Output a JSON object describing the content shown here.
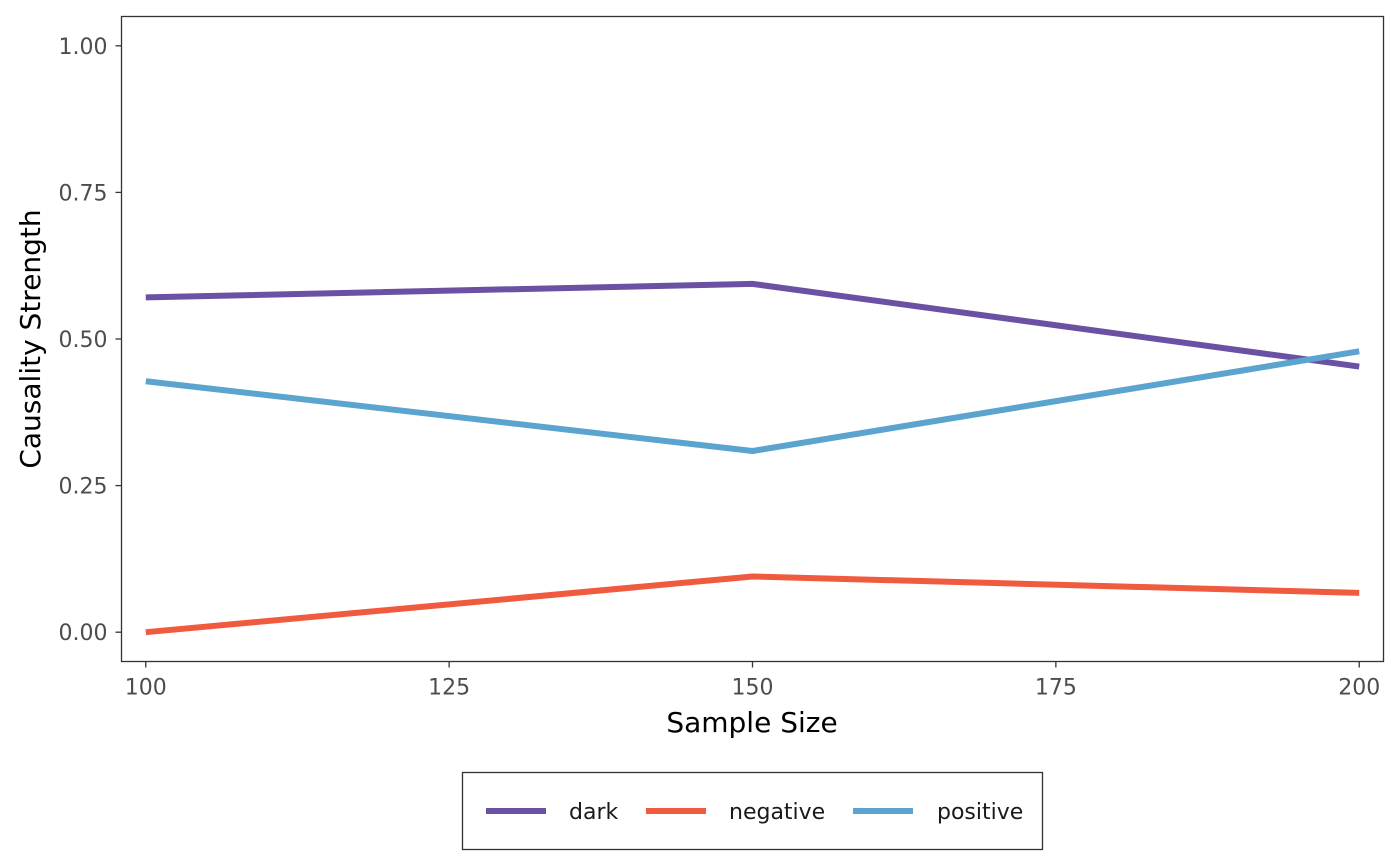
{
  "chart_data": {
    "type": "line",
    "title": "",
    "xlabel": "Sample Size",
    "ylabel": "Causality Strength",
    "x": [
      100,
      150,
      200
    ],
    "xlim": [
      98,
      202
    ],
    "ylim": [
      -0.05,
      1.05
    ],
    "xticks": [
      100,
      125,
      150,
      175,
      200
    ],
    "yticks": [
      0.0,
      0.25,
      0.5,
      0.75,
      1.0
    ],
    "xtick_labels": [
      "100",
      "125",
      "150",
      "175",
      "200"
    ],
    "ytick_labels": [
      "0.00",
      "0.25",
      "0.50",
      "0.75",
      "1.00"
    ],
    "grid": false,
    "legend_position": "bottom",
    "series": [
      {
        "name": "dark",
        "color": "#6a51a3",
        "values": [
          0.571,
          0.594,
          0.453
        ]
      },
      {
        "name": "negative",
        "color": "#f05a3f",
        "values": [
          0.0,
          0.095,
          0.067
        ]
      },
      {
        "name": "positive",
        "color": "#5ba4cf",
        "values": [
          0.428,
          0.309,
          0.479
        ]
      }
    ]
  }
}
